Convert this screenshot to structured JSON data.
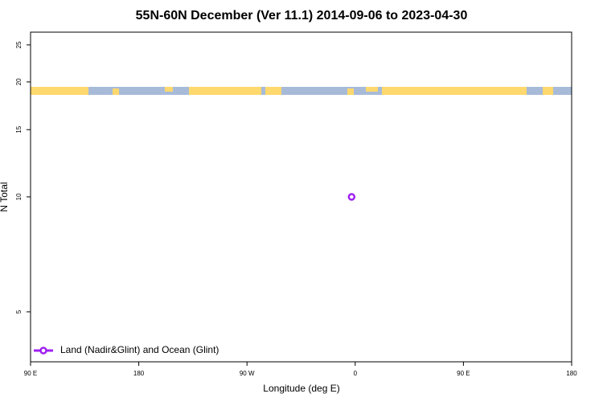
{
  "chart_data": {
    "type": "scatter",
    "title": "55N-60N December (Ver 11.1)   2014-09-06 to 2023-04-30",
    "x_label": "Longitude (deg E)",
    "y_label": "N Total",
    "series": [
      {
        "name": "Land (Nadir&Glint) and Ocean (Glint)",
        "color": "#a020f0",
        "x": [
          -3
        ],
        "values": [
          10
        ]
      }
    ],
    "xlim": [
      -270,
      180
    ],
    "xticks": [
      {
        "value": -270,
        "label": "90 E"
      },
      {
        "value": -180,
        "label": "180"
      },
      {
        "value": -90,
        "label": "90 W"
      },
      0,
      {
        "value": 90,
        "label": "90 E"
      },
      180
    ],
    "ylim": [
      3.7,
      27
    ],
    "yticks": [
      5,
      10,
      15,
      20,
      25
    ],
    "y_log": true,
    "legend": "bottom-left"
  }
}
